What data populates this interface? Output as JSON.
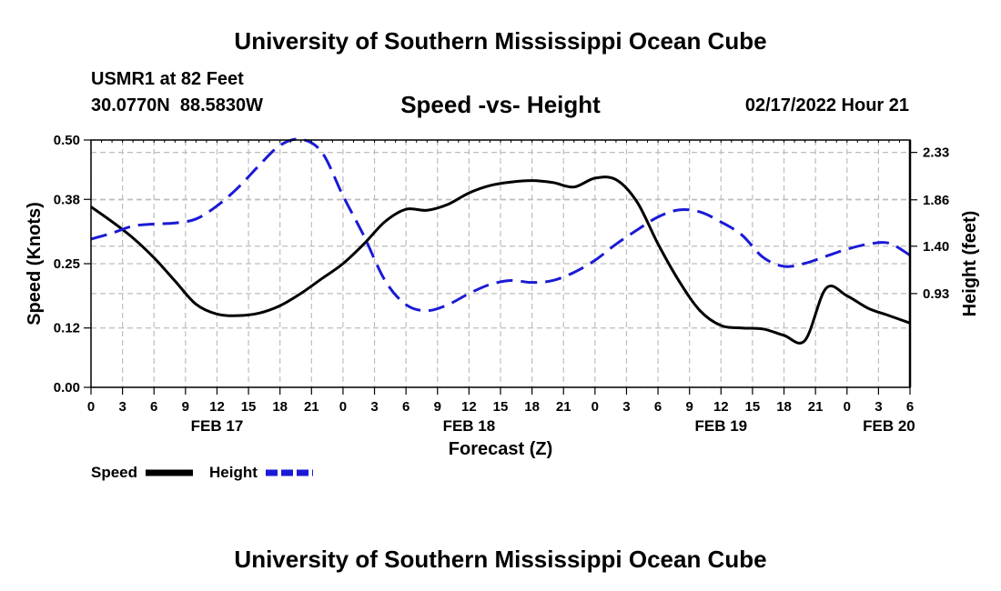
{
  "header": {
    "title": "University of Southern Mississippi Ocean Cube",
    "station": "USMR1 at 82 Feet",
    "coords": "30.0770N  88.5830W",
    "subtitle": "Speed -vs- Height",
    "datetime": "02/17/2022 Hour 21"
  },
  "footer": {
    "title": "University of Southern Mississippi Ocean Cube"
  },
  "chart_data": {
    "type": "line",
    "title": "Speed -vs- Height",
    "xlabel": "Forecast (Z)",
    "ylabel_left": "Speed (Knots)",
    "ylabel_right": "Height (feet)",
    "x_range_hours": [
      0,
      78
    ],
    "x_ticks": [
      {
        "h": 0,
        "label": "0"
      },
      {
        "h": 3,
        "label": "3"
      },
      {
        "h": 6,
        "label": "6"
      },
      {
        "h": 9,
        "label": "9"
      },
      {
        "h": 12,
        "label": "12"
      },
      {
        "h": 15,
        "label": "15"
      },
      {
        "h": 18,
        "label": "18"
      },
      {
        "h": 21,
        "label": "21"
      },
      {
        "h": 24,
        "label": "0"
      },
      {
        "h": 27,
        "label": "3"
      },
      {
        "h": 30,
        "label": "6"
      },
      {
        "h": 33,
        "label": "9"
      },
      {
        "h": 36,
        "label": "12"
      },
      {
        "h": 39,
        "label": "15"
      },
      {
        "h": 42,
        "label": "18"
      },
      {
        "h": 45,
        "label": "21"
      },
      {
        "h": 48,
        "label": "0"
      },
      {
        "h": 51,
        "label": "3"
      },
      {
        "h": 54,
        "label": "6"
      },
      {
        "h": 57,
        "label": "9"
      },
      {
        "h": 60,
        "label": "12"
      },
      {
        "h": 63,
        "label": "15"
      },
      {
        "h": 66,
        "label": "18"
      },
      {
        "h": 69,
        "label": "21"
      },
      {
        "h": 72,
        "label": "0"
      },
      {
        "h": 75,
        "label": "3"
      },
      {
        "h": 78,
        "label": "6"
      }
    ],
    "date_labels": [
      {
        "h": 12,
        "label": "FEB 17"
      },
      {
        "h": 36,
        "label": "FEB 18"
      },
      {
        "h": 60,
        "label": "FEB 19"
      },
      {
        "h": 76,
        "label": "FEB 20"
      }
    ],
    "y_left": {
      "min": 0,
      "max": 0.5,
      "ticks": [
        "0.00",
        "0.12",
        "0.25",
        "0.38",
        "0.50"
      ]
    },
    "y_right": {
      "min": 0.0,
      "max": 2.453,
      "ticks": [
        "0.93",
        "1.40",
        "1.86",
        "2.33"
      ]
    },
    "series": [
      {
        "name": "Speed",
        "axis": "left",
        "color": "#000000",
        "style": "solid",
        "x": [
          0,
          2,
          4,
          6,
          8,
          10,
          12,
          14,
          16,
          18,
          20,
          22,
          24,
          26,
          28,
          30,
          32,
          34,
          36,
          38,
          40,
          42,
          44,
          46,
          48,
          50,
          52,
          54,
          56,
          58,
          60,
          62,
          64,
          66,
          68,
          70,
          72,
          74,
          76,
          78
        ],
        "values": [
          0.365,
          0.335,
          0.302,
          0.262,
          0.215,
          0.168,
          0.148,
          0.145,
          0.15,
          0.165,
          0.19,
          0.22,
          0.25,
          0.29,
          0.335,
          0.36,
          0.358,
          0.37,
          0.393,
          0.408,
          0.415,
          0.418,
          0.414,
          0.405,
          0.423,
          0.42,
          0.375,
          0.29,
          0.215,
          0.155,
          0.125,
          0.12,
          0.118,
          0.105,
          0.095,
          0.2,
          0.185,
          0.16,
          0.145,
          0.13
        ]
      },
      {
        "name": "Height",
        "axis": "right",
        "color": "#1a1ad6",
        "style": "dashed",
        "x": [
          0,
          2,
          4,
          6,
          8,
          10,
          12,
          14,
          16,
          18,
          20,
          22,
          24,
          26,
          28,
          30,
          32,
          34,
          36,
          38,
          40,
          42,
          44,
          46,
          48,
          50,
          52,
          54,
          56,
          58,
          60,
          62,
          64,
          66,
          68,
          70,
          72,
          74,
          76,
          78
        ],
        "values": [
          1.47,
          1.53,
          1.6,
          1.62,
          1.63,
          1.67,
          1.8,
          1.98,
          2.2,
          2.4,
          2.46,
          2.33,
          1.9,
          1.5,
          1.06,
          0.82,
          0.76,
          0.82,
          0.93,
          1.02,
          1.06,
          1.04,
          1.06,
          1.14,
          1.26,
          1.42,
          1.56,
          1.69,
          1.76,
          1.74,
          1.64,
          1.51,
          1.29,
          1.2,
          1.23,
          1.3,
          1.37,
          1.42,
          1.43,
          1.31
        ]
      }
    ],
    "legend": [
      {
        "label": "Speed",
        "color": "#000000",
        "style": "solid"
      },
      {
        "label": "Height",
        "color": "#1a1ad6",
        "style": "dashed"
      }
    ],
    "grid": true
  }
}
